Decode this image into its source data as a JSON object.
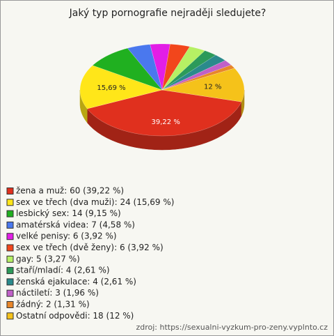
{
  "chart_data": {
    "type": "pie3d",
    "title": "Jaký typ pornografie nejraději sledujete?",
    "categories": [
      "žena a muž: 60 (39,22 %)",
      "sex ve třech (dva muži): 24 (15,69 %)",
      "lesbický sex: 14 (9,15 %)",
      "amatérská videa: 7 (4,58 %)",
      "velké penisy: 6 (3,92 %)",
      "sex ve třech (dvě ženy): 6 (3,92 %)",
      "gay: 5 (3,27 %)",
      "staří/mladí: 4 (2,61 %)",
      "ženská ejakulace: 4 (2,61 %)",
      "náctiletí: 3 (1,96 %)",
      "žádný: 2 (1,31 %)",
      "Ostatní odpovědi: 18 (12 %)"
    ],
    "values": [
      39.22,
      15.69,
      9.15,
      4.58,
      3.92,
      3.92,
      3.27,
      2.61,
      2.61,
      1.96,
      1.31,
      12
    ],
    "value_labels": [
      "39,22 %",
      "15,69 %",
      null,
      null,
      null,
      null,
      null,
      null,
      null,
      null,
      null,
      "12 %"
    ],
    "colors": [
      "#e0301e",
      "#ffe619",
      "#20b020",
      "#4a78ee",
      "#e21ee6",
      "#f2461c",
      "#b6f064",
      "#2c9a5a",
      "#2a8a8c",
      "#c060c8",
      "#e8862a",
      "#f5c21a"
    ],
    "source": "zdroj: https://sexualni-vyzkum-pro-zeny.vyplnto.cz"
  }
}
